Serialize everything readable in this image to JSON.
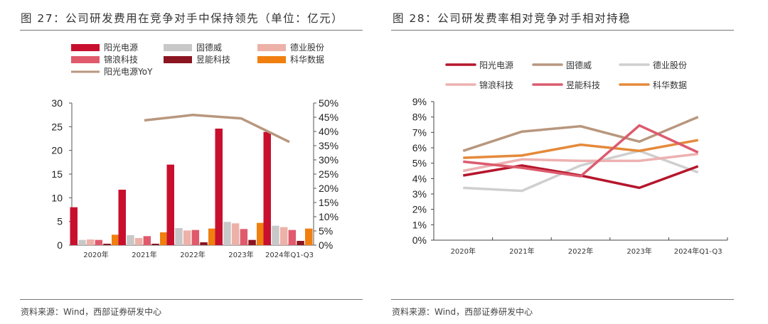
{
  "left_panel": {
    "title": "图 27：公司研发费用在竞争对手中保持领先（单位：亿元）",
    "source": "资料来源：Wind，西部证券研发中心"
  },
  "right_panel": {
    "title": "图 28：公司研发费率相对竞争对手相对持稳",
    "source": "资料来源：Wind，西部证券研发中心"
  },
  "chart_data": [
    {
      "type": "bar",
      "title": "公司研发费用在竞争对手中保持领先（单位：亿元）",
      "categories": [
        "2020年",
        "2021年",
        "2022年",
        "2023年",
        "2024年Q1-Q3"
      ],
      "series": [
        {
          "name": "阳光电源",
          "kind": "bar",
          "axis": "left",
          "color": "#C8102E",
          "values": [
            8.0,
            11.7,
            17.0,
            24.6,
            23.9
          ]
        },
        {
          "name": "固德威",
          "kind": "bar",
          "axis": "left",
          "color": "#C8C8C8",
          "values": [
            1.1,
            2.1,
            3.6,
            4.9,
            4.1
          ]
        },
        {
          "name": "德业股份",
          "kind": "bar",
          "axis": "left",
          "color": "#EDB1A8",
          "values": [
            1.2,
            1.5,
            3.1,
            4.6,
            3.8
          ]
        },
        {
          "name": "锦浪科技",
          "kind": "bar",
          "axis": "left",
          "color": "#E05A6C",
          "values": [
            1.1,
            1.9,
            3.2,
            3.4,
            3.2
          ]
        },
        {
          "name": "昱能科技",
          "kind": "bar",
          "axis": "left",
          "color": "#8B1520",
          "values": [
            0.3,
            0.3,
            0.6,
            1.1,
            0.9
          ]
        },
        {
          "name": "科华数据",
          "kind": "bar",
          "axis": "left",
          "color": "#F07F10",
          "values": [
            2.2,
            2.7,
            3.5,
            4.7,
            3.5
          ]
        },
        {
          "name": "阳光电源YoY",
          "kind": "line",
          "axis": "right",
          "color": "#B8977E",
          "values": [
            null,
            43.9,
            45.8,
            44.6,
            36.3
          ]
        }
      ],
      "y_left": {
        "min": 0,
        "max": 30,
        "ticks": [
          "0",
          "5",
          "10",
          "15",
          "20",
          "25",
          "30"
        ]
      },
      "y_right": {
        "min": 0,
        "max": 50,
        "ticks": [
          "0%",
          "5%",
          "10%",
          "15%",
          "20%",
          "25%",
          "30%",
          "35%",
          "40%",
          "45%",
          "50%"
        ]
      },
      "legend_position": "top",
      "grid": false
    },
    {
      "type": "line",
      "title": "公司研发费率相对竞争对手相对持稳",
      "categories": [
        "2020年",
        "2021年",
        "2022年",
        "2023年",
        "2024年Q1-Q3"
      ],
      "series": [
        {
          "name": "阳光电源",
          "color": "#B5162B",
          "values": [
            4.2,
            4.85,
            4.2,
            3.4,
            4.8
          ]
        },
        {
          "name": "固德威",
          "color": "#B8977E",
          "values": [
            5.8,
            7.05,
            7.4,
            6.4,
            8.0
          ]
        },
        {
          "name": "德业股份",
          "color": "#CFCFCF",
          "values": [
            3.4,
            3.2,
            4.85,
            5.8,
            4.4
          ]
        },
        {
          "name": "锦浪科技",
          "color": "#EDB1B1",
          "values": [
            4.5,
            5.25,
            5.15,
            5.15,
            5.6
          ]
        },
        {
          "name": "昱能科技",
          "color": "#DC5B6E",
          "values": [
            5.1,
            4.7,
            4.15,
            7.45,
            5.7
          ]
        },
        {
          "name": "科华数据",
          "color": "#E5893A",
          "values": [
            5.35,
            5.5,
            6.2,
            5.8,
            6.5
          ]
        }
      ],
      "y": {
        "min": 0,
        "max": 9,
        "ticks": [
          "0%",
          "1%",
          "2%",
          "3%",
          "4%",
          "5%",
          "6%",
          "7%",
          "8%",
          "9%"
        ]
      },
      "legend_position": "top",
      "grid": false
    }
  ]
}
